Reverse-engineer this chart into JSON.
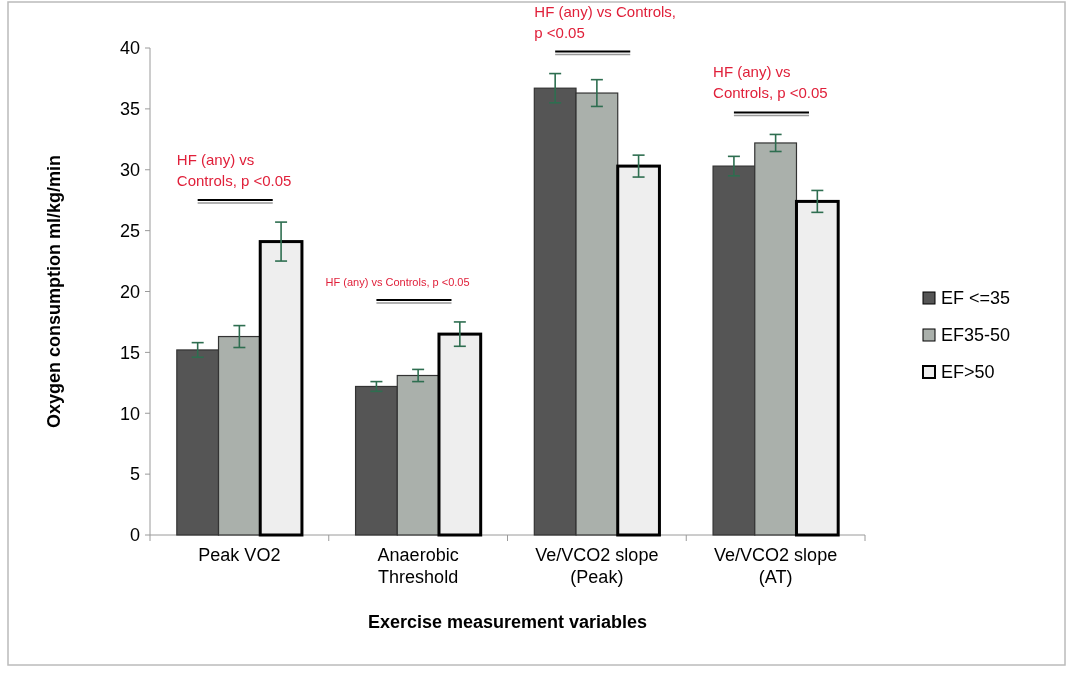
{
  "chart_data": {
    "type": "bar",
    "xlabel": "Exercise measurement variables",
    "ylabel": "Oxygen consumption ml/kg/min",
    "categories": [
      "Peak VO2",
      "Anaerobic Threshold",
      "Ve/VCO2 slope (Peak)",
      "Ve/VCO2 slope (AT)"
    ],
    "series": [
      {
        "name": "EF <=35",
        "color": "#555555",
        "values": [
          15.2,
          12.2,
          36.7,
          30.3
        ],
        "errors": [
          0.6,
          0.4,
          1.2,
          0.8
        ]
      },
      {
        "name": "EF35-50",
        "color": "#aab0ab",
        "values": [
          16.3,
          13.1,
          36.3,
          32.2
        ],
        "errors": [
          0.9,
          0.5,
          1.1,
          0.7
        ]
      },
      {
        "name": "EF>50",
        "color": "#eeeeee",
        "values": [
          24.1,
          16.5,
          30.3,
          27.4
        ],
        "errors": [
          1.6,
          1.0,
          0.9,
          0.9
        ]
      }
    ],
    "ylim": [
      0,
      40
    ],
    "yticks": [
      0,
      5,
      10,
      15,
      20,
      25,
      30,
      35,
      40
    ],
    "grid": false,
    "legend": "right",
    "annotations": [
      "HF (any) vs Controls, p <0.05",
      "HF (any) vs Controls, p <0.05",
      "HF (any) vs Controls, p <0.05",
      "HF (any) vs Controls, p <0.05"
    ]
  }
}
